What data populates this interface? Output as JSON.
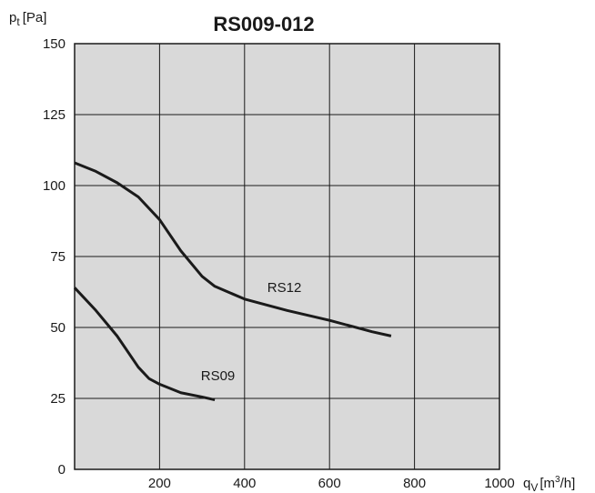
{
  "chart_data": {
    "type": "line",
    "title": "RS009-012",
    "ylabel": {
      "symbol": "p",
      "subscript": "t",
      "unit": "[Pa]"
    },
    "xlabel": {
      "symbol": "q",
      "subscript": "V",
      "unit_start": "[m",
      "superscript": "3",
      "unit_end": "/h]"
    },
    "xlim": [
      0,
      1000
    ],
    "xticks": [
      200,
      400,
      600,
      800,
      1000
    ],
    "ylim": [
      0,
      150
    ],
    "yticks": [
      0,
      25,
      50,
      75,
      100,
      125,
      150
    ],
    "grid": true,
    "background": "#d9d9d9",
    "series": [
      {
        "name": "RS12",
        "color": "#1a1a1a",
        "x": [
          0,
          50,
          100,
          150,
          200,
          250,
          300,
          330,
          400,
          500,
          600,
          700,
          745
        ],
        "values": [
          108,
          105,
          101,
          96,
          88,
          77,
          68,
          64.5,
          60,
          56,
          52.5,
          48.5,
          47
        ]
      },
      {
        "name": "RS09",
        "color": "#1a1a1a",
        "x": [
          0,
          50,
          100,
          150,
          175,
          200,
          250,
          300,
          330
        ],
        "values": [
          64,
          56,
          47,
          36,
          32,
          30,
          27,
          25.5,
          24.5
        ]
      }
    ]
  }
}
